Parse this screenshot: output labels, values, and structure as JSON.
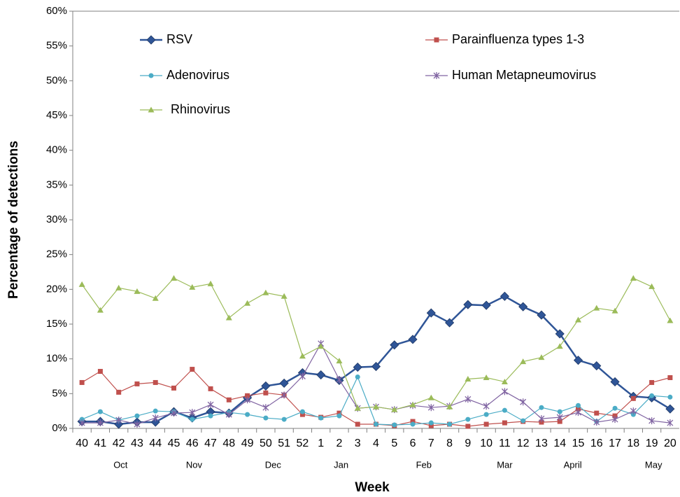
{
  "chart_data": {
    "type": "line",
    "x_label": "Week",
    "y_label": "Percentage of detections",
    "categories": [
      "40",
      "41",
      "42",
      "43",
      "44",
      "45",
      "46",
      "47",
      "48",
      "49",
      "50",
      "51",
      "52",
      "1",
      "2",
      "3",
      "4",
      "5",
      "6",
      "7",
      "8",
      "9",
      "10",
      "11",
      "12",
      "13",
      "14",
      "15",
      "16",
      "17",
      "18",
      "19",
      "20"
    ],
    "month_labels": [
      "Oct",
      "Nov",
      "Dec",
      "Jan",
      "Feb",
      "Mar",
      "April",
      "May"
    ],
    "ylim": [
      0,
      60
    ],
    "yticks": [
      {
        "value": 0,
        "label": "0%"
      },
      {
        "value": 5,
        "label": "5%"
      },
      {
        "value": 10,
        "label": "10%"
      },
      {
        "value": 15,
        "label": "15%"
      },
      {
        "value": 20,
        "label": "20%"
      },
      {
        "value": 25,
        "label": "25%"
      },
      {
        "value": 30,
        "label": "30%"
      },
      {
        "value": 35,
        "label": "35%"
      },
      {
        "value": 40,
        "label": "40%"
      },
      {
        "value": 45,
        "label": "45%"
      },
      {
        "value": 50,
        "label": "50%"
      },
      {
        "value": 55,
        "label": "55%"
      },
      {
        "value": 60,
        "label": "60%"
      }
    ],
    "grid": false,
    "series": [
      {
        "name": "RSV",
        "color": "#2f5597",
        "marker": "diamond",
        "values": [
          1.0,
          1.0,
          0.6,
          0.9,
          0.9,
          2.4,
          1.5,
          2.4,
          2.2,
          4.4,
          6.1,
          6.5,
          8.0,
          7.7,
          6.9,
          8.8,
          8.9,
          12.0,
          12.8,
          16.6,
          15.2,
          17.8,
          17.7,
          19.0,
          17.5,
          16.3,
          13.6,
          9.8,
          9.0,
          6.7,
          4.6,
          4.4,
          2.8
        ]
      },
      {
        "name": "Parainfluenza types 1-3",
        "color": "#c0504d",
        "marker": "square",
        "values": [
          6.6,
          8.2,
          5.2,
          6.4,
          6.6,
          5.8,
          8.5,
          5.7,
          4.1,
          4.7,
          5.1,
          4.8,
          2.0,
          1.6,
          2.2,
          0.6,
          0.6,
          0.4,
          1.0,
          0.4,
          0.6,
          0.3,
          0.6,
          0.8,
          1.0,
          0.9,
          1.0,
          2.8,
          2.2,
          1.8,
          4.3,
          6.6,
          7.3
        ]
      },
      {
        "name": "Adenovirus",
        "color": "#4bacc6",
        "marker": "circle",
        "values": [
          1.3,
          2.4,
          1.2,
          1.8,
          2.5,
          2.4,
          1.3,
          1.8,
          2.3,
          2.0,
          1.5,
          1.3,
          2.4,
          1.5,
          1.8,
          7.4,
          0.6,
          0.5,
          0.6,
          0.8,
          0.6,
          1.3,
          2.0,
          2.6,
          1.1,
          3.0,
          2.4,
          3.3,
          1.0,
          2.9,
          2.0,
          4.7,
          4.5
        ]
      },
      {
        "name": "Human Metapneumovirus",
        "color": "#8064a2",
        "marker": "star",
        "values": [
          0.8,
          0.8,
          1.2,
          0.6,
          1.5,
          2.2,
          2.3,
          3.4,
          2.0,
          4.1,
          3.0,
          4.8,
          7.5,
          12.2,
          7.0,
          2.9,
          3.1,
          2.7,
          3.3,
          3.0,
          3.2,
          4.2,
          3.2,
          5.3,
          3.8,
          1.4,
          1.6,
          2.3,
          0.9,
          1.3,
          2.5,
          1.1,
          0.8
        ]
      },
      {
        "name": "Rhinovirus",
        "color": "#9bbb59",
        "marker": "triangle",
        "values": [
          20.7,
          17.0,
          20.2,
          19.7,
          18.7,
          21.6,
          20.3,
          20.8,
          15.9,
          18.0,
          19.5,
          19.0,
          10.4,
          11.8,
          9.7,
          2.9,
          3.1,
          2.7,
          3.4,
          4.4,
          3.1,
          7.1,
          7.3,
          6.7,
          9.6,
          10.2,
          11.8,
          15.6,
          17.3,
          16.9,
          21.6,
          20.4,
          15.5
        ]
      }
    ]
  }
}
